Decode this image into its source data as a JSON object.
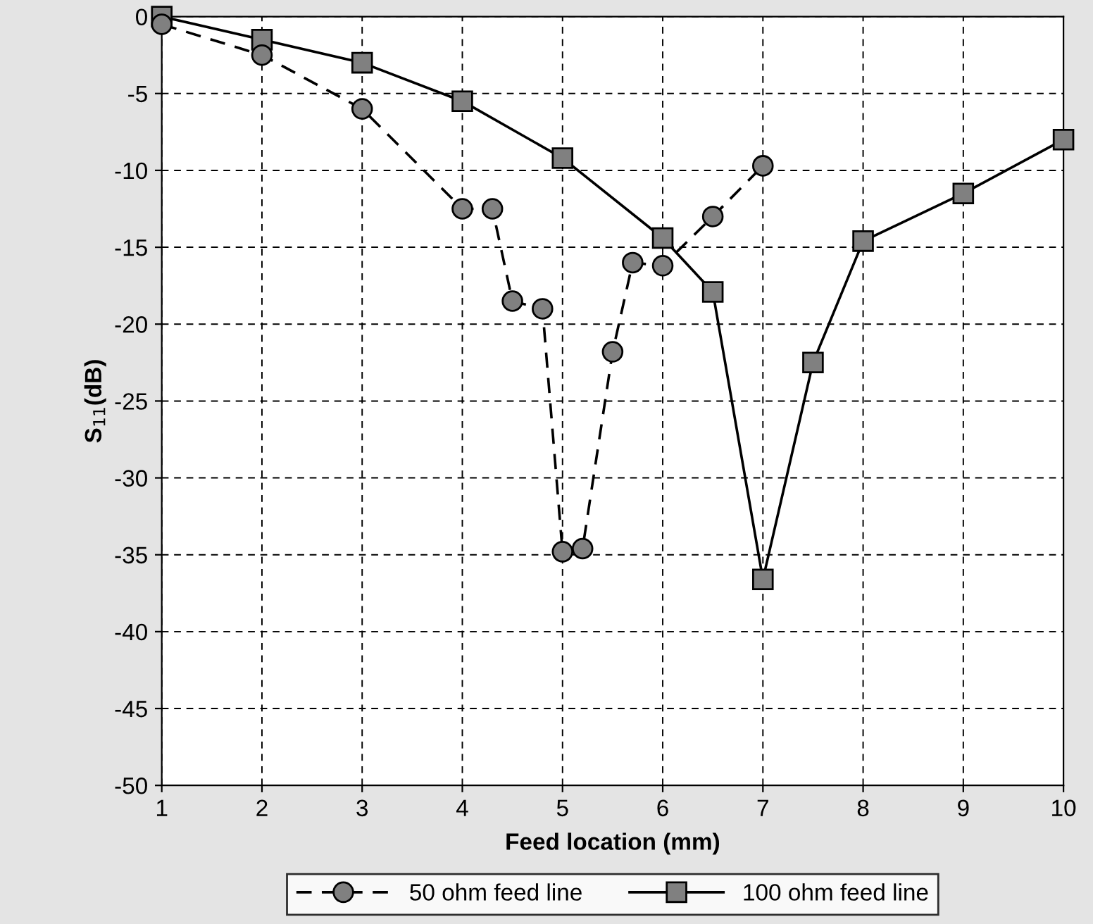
{
  "chart_data": {
    "type": "line",
    "xlabel": "Feed location (mm)",
    "ylabel": "S$_{11}$(dB)",
    "xlim": [
      1,
      10
    ],
    "xticks": [
      1,
      2,
      3,
      4,
      5,
      6,
      7,
      8,
      9,
      10
    ],
    "ylim": [
      -50,
      0
    ],
    "yticks": [
      -50,
      -45,
      -40,
      -35,
      -30,
      -25,
      -20,
      -15,
      -10,
      -5,
      0
    ],
    "grid": true,
    "legend": "bottom",
    "series": [
      {
        "name": "50 ohm feed line",
        "color": "#000000",
        "marker": "circle",
        "line_style": "dashed",
        "x": [
          1,
          2,
          3,
          4,
          4.3,
          4.5,
          4.8,
          5,
          5.2,
          5.5,
          5.7,
          6,
          6.5,
          7
        ],
        "values": [
          -0.5,
          -2.5,
          -6,
          -12.5,
          -12.5,
          -18.5,
          -19,
          -34.8,
          -34.6,
          -21.8,
          -16,
          -16.2,
          -13,
          -9.7
        ]
      },
      {
        "name": "100 ohm feed line",
        "color": "#000000",
        "marker": "square",
        "line_style": "solid",
        "x": [
          1,
          2,
          3,
          4,
          5,
          6,
          6.5,
          7,
          7.5,
          8,
          9,
          10
        ],
        "values": [
          0,
          -1.5,
          -3,
          -5.5,
          -9.2,
          -14.4,
          -17.9,
          -36.6,
          -22.5,
          -14.6,
          -11.5,
          -8
        ]
      }
    ]
  }
}
